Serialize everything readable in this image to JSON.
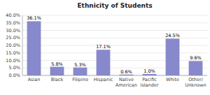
{
  "chart_data": {
    "type": "bar",
    "title": "Ethnicity of Students",
    "categories": [
      "Asian",
      "Black",
      "Filipino",
      "Hispanic",
      "Native\nAmerican",
      "Pacific\nIslander",
      "White",
      "Other/\nUnknown"
    ],
    "values": [
      36.1,
      5.8,
      5.3,
      17.1,
      0.6,
      1.0,
      24.5,
      9.6
    ],
    "value_labels": [
      "36.1%",
      "5.8%",
      "5.3%",
      "17.1%",
      "0.6%",
      "1.0%",
      "24.5%",
      "9.6%"
    ],
    "data_labels": true,
    "color": "#8888cc",
    "ylim": [
      0,
      40
    ],
    "yticks": [
      {
        "value": 0.0,
        "label": "0.0%"
      },
      {
        "value": 5.0,
        "label": "5.0%"
      },
      {
        "value": 10.0,
        "label": "10.0%"
      },
      {
        "value": 15.0,
        "label": "15.0%"
      },
      {
        "value": 20.0,
        "label": "20.0%"
      },
      {
        "value": 25.0,
        "label": "25.0%"
      },
      {
        "value": 30.0,
        "label": "30.0%"
      },
      {
        "value": 35.0,
        "label": "35.0%"
      },
      {
        "value": 40.0,
        "label": "40.0%"
      }
    ],
    "grid": true
  }
}
